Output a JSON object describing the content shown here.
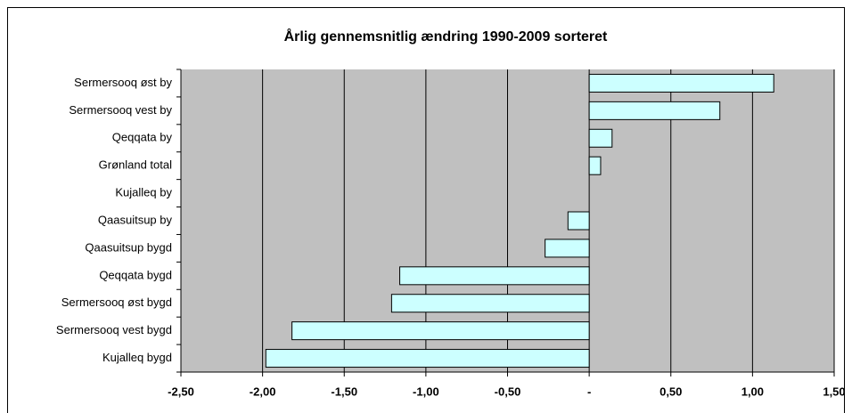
{
  "chart_data": {
    "type": "bar",
    "orientation": "horizontal",
    "title": "Årlig gennemsnitlig ændring 1990-2009 sorteret",
    "categories": [
      "Sermersooq øst by",
      "Sermersooq vest by",
      "Qeqqata by",
      "Grønland total",
      "Kujalleq by",
      "Qaasuitsup by",
      "Qaasuitsup bygd",
      "Qeqqata bygd",
      "Sermersooq øst bygd",
      "Sermersooq vest bygd",
      "Kujalleq bygd"
    ],
    "values": [
      1.13,
      0.8,
      0.14,
      0.07,
      0,
      -0.13,
      -0.27,
      -1.16,
      -1.21,
      -1.82,
      -1.98
    ],
    "color": "#ccffff",
    "xlim": [
      -2.5,
      1.5
    ],
    "xticks": [
      {
        "value": -2.5,
        "label": "-2,50"
      },
      {
        "value": -2,
        "label": "-2,00"
      },
      {
        "value": -1.5,
        "label": "-1,50"
      },
      {
        "value": -1,
        "label": "-1,00"
      },
      {
        "value": -0.5,
        "label": "-0,50"
      },
      {
        "value": 0,
        "label": "-"
      },
      {
        "value": 0.5,
        "label": "0,50"
      },
      {
        "value": 1,
        "label": "1,00"
      },
      {
        "value": 1.5,
        "label": "1,50"
      }
    ],
    "grid": true
  }
}
